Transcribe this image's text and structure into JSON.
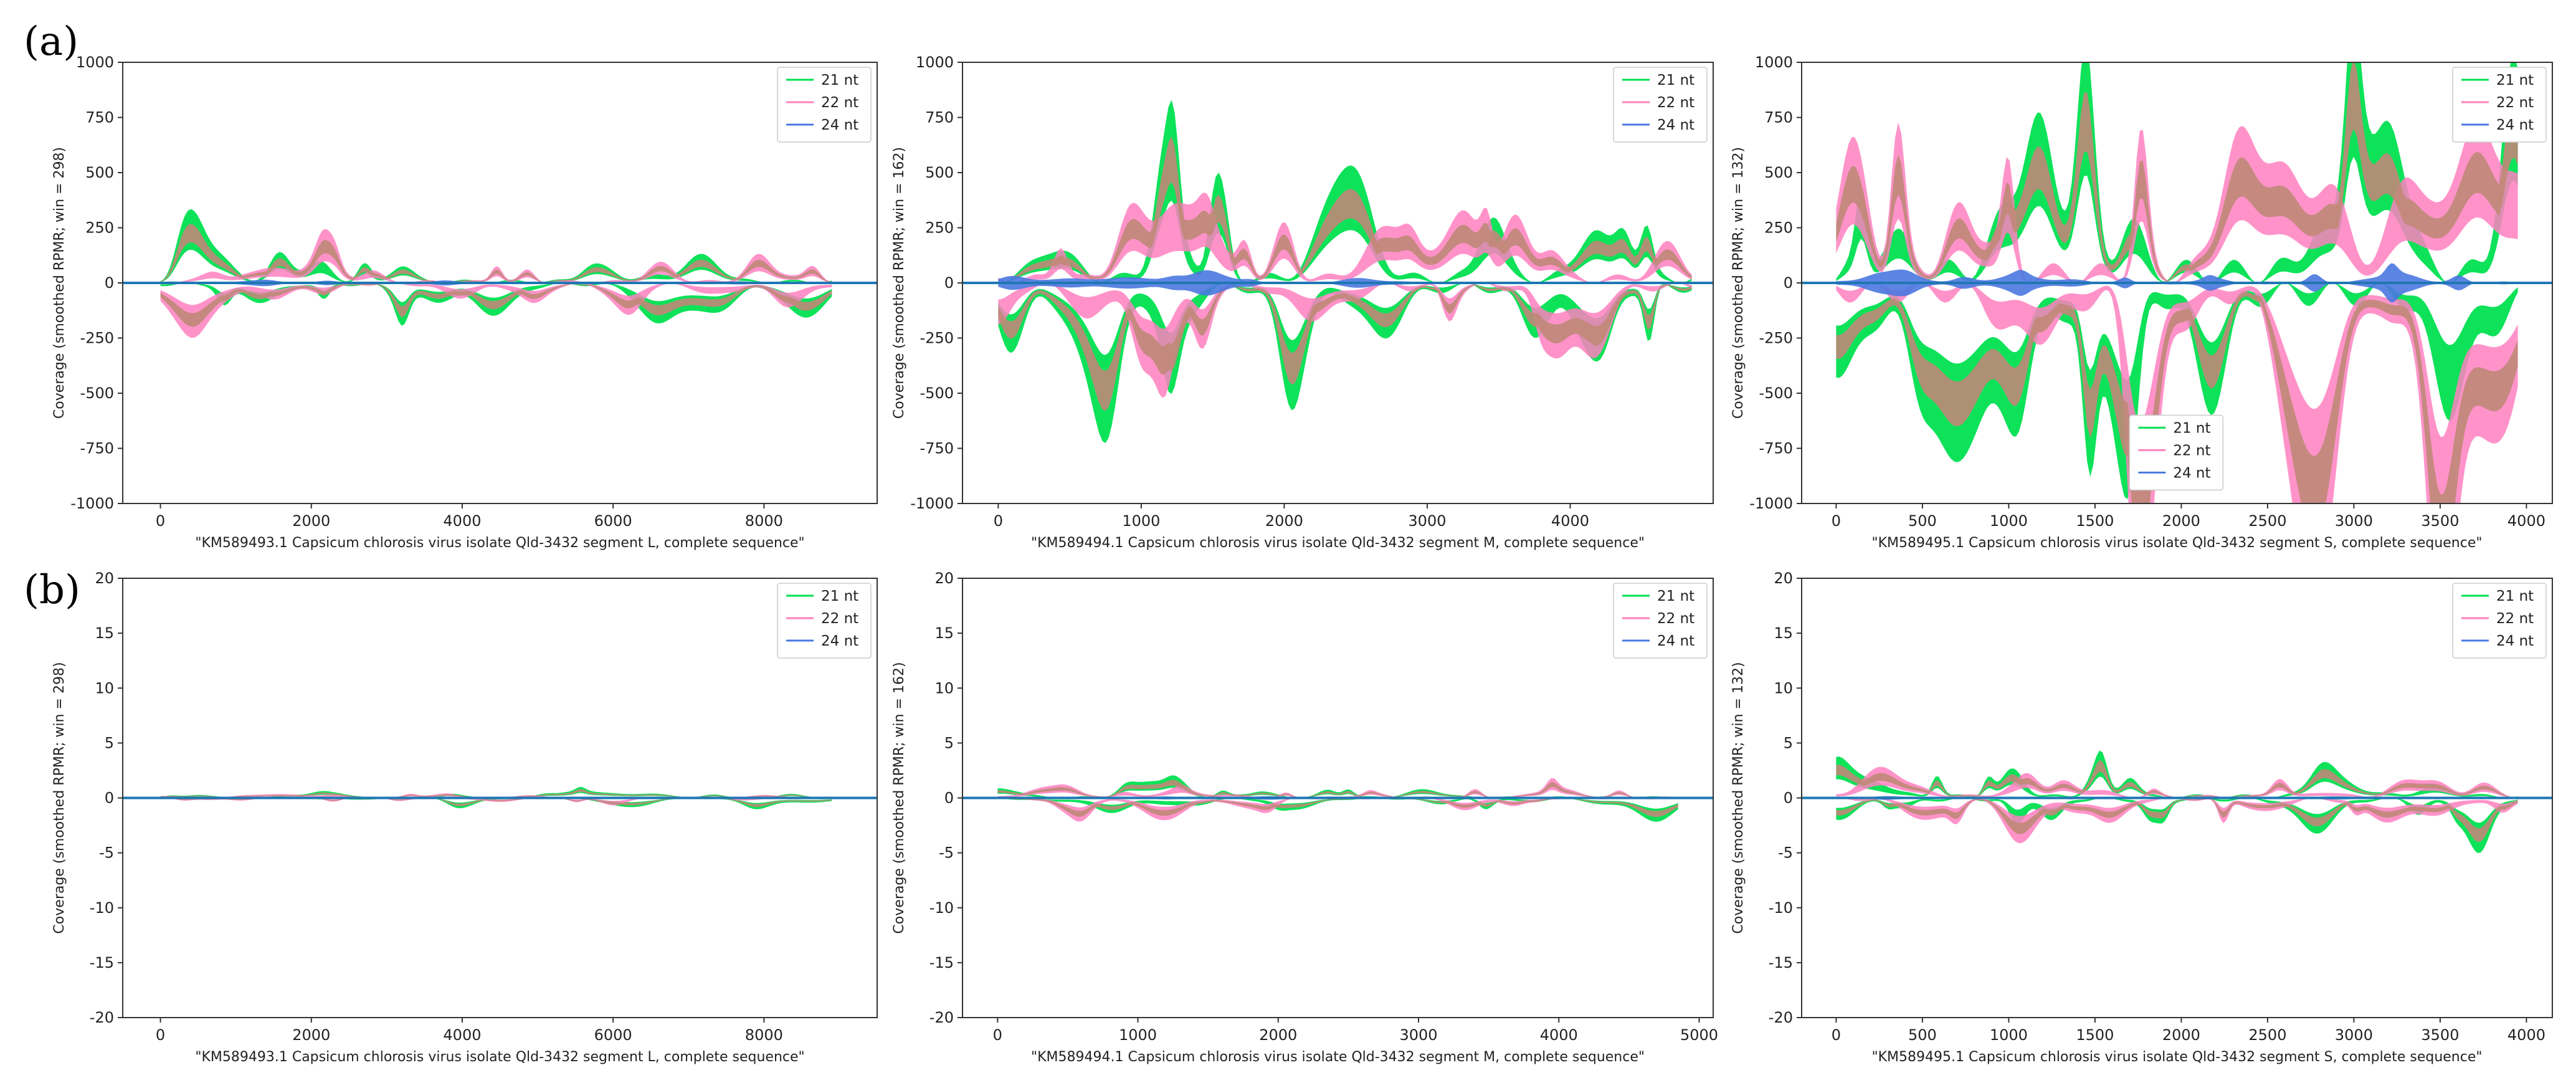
{
  "figure": {
    "panel_labels": [
      "(a)",
      "(b)"
    ],
    "legend_entries": [
      {
        "label": "21 nt",
        "color": "#00e050"
      },
      {
        "label": "22 nt",
        "color": "#ff80c0"
      },
      {
        "label": "24 nt",
        "color": "#4a78e0"
      }
    ],
    "colors": {
      "zero_line": "#1f77b4",
      "overlap": "#c08878",
      "axes": "#333333"
    }
  },
  "chart_data": [
    {
      "id": "a1",
      "row": "a",
      "col": 0,
      "type": "area",
      "title": "",
      "xlabel": "\"KM589493.1 Capsicum chlorosis virus isolate Qld-3432 segment L, complete sequence\"",
      "ylabel": "Coverage (smoothed RPMR; win = 298)",
      "xlim": [
        -500,
        9500
      ],
      "ylim": [
        -1000,
        1000
      ],
      "xticks": [
        0,
        2000,
        4000,
        6000,
        8000
      ],
      "yticks": [
        -1000,
        -750,
        -500,
        -250,
        0,
        250,
        500,
        750,
        1000
      ],
      "legend": "upper-right",
      "length": 8900,
      "amp": 100,
      "seed": 11,
      "series": [
        {
          "name": "21 nt"
        },
        {
          "name": "22 nt"
        },
        {
          "name": "24 nt"
        }
      ]
    },
    {
      "id": "a2",
      "row": "a",
      "col": 1,
      "type": "area",
      "title": "",
      "xlabel": "\"KM589494.1 Capsicum chlorosis virus isolate Qld-3432 segment M, complete sequence\"",
      "ylabel": "Coverage (smoothed RPMR; win = 162)",
      "xlim": [
        -250,
        5000
      ],
      "ylim": [
        -1000,
        1000
      ],
      "xticks": [
        0,
        1000,
        2000,
        3000,
        4000
      ],
      "yticks": [
        -1000,
        -750,
        -500,
        -250,
        0,
        250,
        500,
        750,
        1000
      ],
      "legend": "upper-right",
      "length": 4850,
      "amp": 300,
      "seed": 23,
      "series": [
        {
          "name": "21 nt"
        },
        {
          "name": "22 nt"
        },
        {
          "name": "24 nt"
        }
      ]
    },
    {
      "id": "a3",
      "row": "a",
      "col": 2,
      "type": "area",
      "title": "",
      "xlabel": "\"KM589495.1 Capsicum chlorosis virus isolate Qld-3432 segment S, complete sequence\"",
      "ylabel": "Coverage (smoothed RPMR; win = 132)",
      "xlim": [
        -200,
        4150
      ],
      "ylim": [
        -1000,
        1000
      ],
      "xticks": [
        0,
        500,
        1000,
        1500,
        2000,
        2500,
        3000,
        3500,
        4000
      ],
      "yticks": [
        -1000,
        -750,
        -500,
        -250,
        0,
        250,
        500,
        750,
        1000
      ],
      "legend": "upper-right",
      "legend2": "lower-center",
      "length": 3950,
      "amp": 700,
      "seed": 37,
      "series": [
        {
          "name": "21 nt"
        },
        {
          "name": "22 nt"
        },
        {
          "name": "24 nt"
        }
      ]
    },
    {
      "id": "b1",
      "row": "b",
      "col": 0,
      "type": "area",
      "title": "",
      "xlabel": "\"KM589493.1 Capsicum chlorosis virus isolate Qld-3432 segment L, complete sequence\"",
      "ylabel": "Coverage (smoothed RPMR; win = 298)",
      "xlim": [
        -500,
        9500
      ],
      "ylim": [
        -20,
        20
      ],
      "xticks": [
        0,
        2000,
        4000,
        6000,
        8000
      ],
      "yticks": [
        -20,
        -15,
        -10,
        -5,
        0,
        5,
        10,
        15,
        20
      ],
      "legend": "upper-right",
      "length": 8900,
      "amp": 0.35,
      "seed": 41,
      "series": [
        {
          "name": "21 nt"
        },
        {
          "name": "22 nt"
        },
        {
          "name": "24 nt"
        }
      ]
    },
    {
      "id": "b2",
      "row": "b",
      "col": 1,
      "type": "area",
      "title": "",
      "xlabel": "\"KM589494.1 Capsicum chlorosis virus isolate Qld-3432 segment M, complete sequence\"",
      "ylabel": "Coverage (smoothed RPMR; win = 162)",
      "xlim": [
        -250,
        5100
      ],
      "ylim": [
        -20,
        20
      ],
      "xticks": [
        0,
        1000,
        2000,
        3000,
        4000,
        5000
      ],
      "yticks": [
        -20,
        -15,
        -10,
        -5,
        0,
        5,
        10,
        15,
        20
      ],
      "legend": "upper-right",
      "length": 4850,
      "amp": 1.0,
      "seed": 53,
      "series": [
        {
          "name": "21 nt"
        },
        {
          "name": "22 nt"
        },
        {
          "name": "24 nt"
        }
      ]
    },
    {
      "id": "b3",
      "row": "b",
      "col": 2,
      "type": "area",
      "title": "",
      "xlabel": "\"KM589495.1 Capsicum chlorosis virus isolate Qld-3432 segment S, complete sequence\"",
      "ylabel": "Coverage (smoothed RPMR; win = 132)",
      "xlim": [
        -200,
        4150
      ],
      "ylim": [
        -20,
        20
      ],
      "xticks": [
        0,
        500,
        1000,
        1500,
        2000,
        2500,
        3000,
        3500,
        4000
      ],
      "yticks": [
        -20,
        -15,
        -10,
        -5,
        0,
        5,
        10,
        15,
        20
      ],
      "legend": "upper-right",
      "length": 3950,
      "amp": 2.2,
      "seed": 67,
      "series": [
        {
          "name": "21 nt"
        },
        {
          "name": "22 nt"
        },
        {
          "name": "24 nt"
        }
      ]
    }
  ]
}
